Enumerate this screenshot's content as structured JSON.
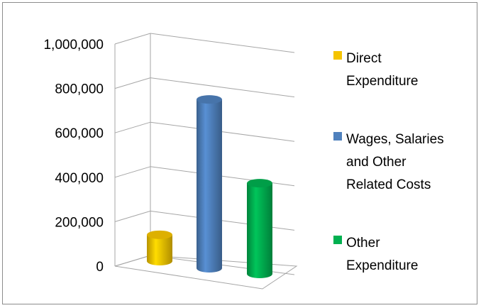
{
  "chart_data": {
    "type": "bar",
    "style": "3d-cylinder",
    "categories": [
      "Direct Expenditure",
      "Wages, Salaries and Other Related Costs",
      "Other Expenditure"
    ],
    "values": [
      125000,
      800000,
      430000
    ],
    "colors": [
      "#F5C400",
      "#4F81BD",
      "#00B050"
    ],
    "ylim": [
      0,
      1000000
    ],
    "yticks": [
      0,
      200000,
      400000,
      600000,
      800000,
      1000000
    ],
    "ytick_labels": [
      "0",
      "200,000",
      "400,000",
      "600,000",
      "800,000",
      "1,000,000"
    ],
    "grid": true,
    "legend_position": "right",
    "legend": [
      {
        "lines": [
          "Direct",
          "Expenditure"
        ],
        "color": "#F5C400"
      },
      {
        "lines": [
          "Wages, Salaries",
          "and Other",
          "Related Costs"
        ],
        "color": "#4F81BD"
      },
      {
        "lines": [
          "Other",
          "Expenditure"
        ],
        "color": "#00B050"
      }
    ]
  }
}
